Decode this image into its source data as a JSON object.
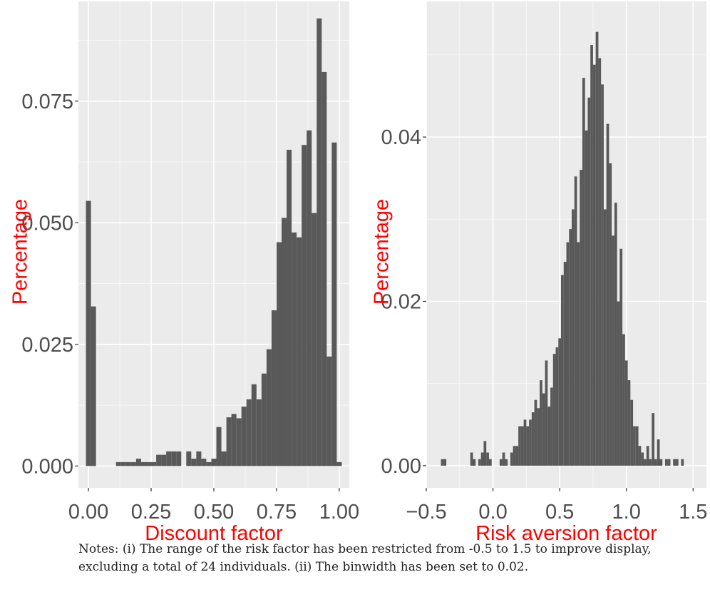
{
  "chart_data": [
    {
      "type": "bar",
      "title": "",
      "xlabel": "Discount factor",
      "ylabel": "Percentage",
      "binwidth": 0.02,
      "xlim": [
        -0.04,
        1.04
      ],
      "ylim": [
        -0.0045,
        0.0955
      ],
      "x_ticks": [
        0.0,
        0.25,
        0.5,
        0.75,
        1.0
      ],
      "x_tick_labels": [
        "0.00",
        "0.25",
        "0.50",
        "0.75",
        "1.00"
      ],
      "y_ticks": [
        0.0,
        0.025,
        0.05,
        0.075
      ],
      "y_tick_labels": [
        "0.000",
        "0.025",
        "0.050",
        "0.075"
      ],
      "grid": true,
      "bar_color": "#595959",
      "bins": [
        {
          "x": 0.0,
          "y": 0.0545
        },
        {
          "x": 0.02,
          "y": 0.0328
        },
        {
          "x": 0.12,
          "y": 0.0008
        },
        {
          "x": 0.14,
          "y": 0.0008
        },
        {
          "x": 0.16,
          "y": 0.0008
        },
        {
          "x": 0.18,
          "y": 0.0008
        },
        {
          "x": 0.2,
          "y": 0.0015
        },
        {
          "x": 0.22,
          "y": 0.0008
        },
        {
          "x": 0.24,
          "y": 0.0008
        },
        {
          "x": 0.26,
          "y": 0.0008
        },
        {
          "x": 0.28,
          "y": 0.0023
        },
        {
          "x": 0.3,
          "y": 0.0023
        },
        {
          "x": 0.32,
          "y": 0.003
        },
        {
          "x": 0.34,
          "y": 0.003
        },
        {
          "x": 0.36,
          "y": 0.003
        },
        {
          "x": 0.4,
          "y": 0.003
        },
        {
          "x": 0.42,
          "y": 0.0015
        },
        {
          "x": 0.44,
          "y": 0.003
        },
        {
          "x": 0.46,
          "y": 0.0015
        },
        {
          "x": 0.48,
          "y": 0.0008
        },
        {
          "x": 0.5,
          "y": 0.0015
        },
        {
          "x": 0.52,
          "y": 0.008
        },
        {
          "x": 0.54,
          "y": 0.003
        },
        {
          "x": 0.56,
          "y": 0.01
        },
        {
          "x": 0.58,
          "y": 0.0107
        },
        {
          "x": 0.6,
          "y": 0.0098
        },
        {
          "x": 0.62,
          "y": 0.0122
        },
        {
          "x": 0.64,
          "y": 0.0137
        },
        {
          "x": 0.66,
          "y": 0.0168
        },
        {
          "x": 0.68,
          "y": 0.0137
        },
        {
          "x": 0.7,
          "y": 0.019
        },
        {
          "x": 0.72,
          "y": 0.024
        },
        {
          "x": 0.74,
          "y": 0.032
        },
        {
          "x": 0.76,
          "y": 0.046
        },
        {
          "x": 0.78,
          "y": 0.051
        },
        {
          "x": 0.8,
          "y": 0.065
        },
        {
          "x": 0.82,
          "y": 0.048
        },
        {
          "x": 0.84,
          "y": 0.047
        },
        {
          "x": 0.86,
          "y": 0.066
        },
        {
          "x": 0.88,
          "y": 0.069
        },
        {
          "x": 0.9,
          "y": 0.052
        },
        {
          "x": 0.92,
          "y": 0.092
        },
        {
          "x": 0.94,
          "y": 0.081
        },
        {
          "x": 0.96,
          "y": 0.0225
        },
        {
          "x": 0.98,
          "y": 0.0665
        },
        {
          "x": 1.0,
          "y": 0.0008
        }
      ]
    },
    {
      "type": "bar",
      "title": "",
      "xlabel": "Risk aversion factor",
      "ylabel": "Percentage",
      "binwidth": 0.02,
      "xlim": [
        -0.5,
        1.6
      ],
      "ylim": [
        -0.0027,
        0.0565
      ],
      "x_ticks": [
        -0.5,
        0.0,
        0.5,
        1.0,
        1.5
      ],
      "x_tick_labels": [
        "−0.5",
        "0.0",
        "0.5",
        "1.0",
        "1.5"
      ],
      "y_ticks": [
        0.0,
        0.02,
        0.04
      ],
      "y_tick_labels": [
        "0.00",
        "0.02",
        "0.04"
      ],
      "grid": true,
      "bar_color": "#595959",
      "bins": [
        {
          "x": -0.38,
          "y": 0.0008
        },
        {
          "x": -0.36,
          "y": 0.0008
        },
        {
          "x": -0.16,
          "y": 0.0016
        },
        {
          "x": -0.14,
          "y": 0.0008
        },
        {
          "x": -0.1,
          "y": 0.0008
        },
        {
          "x": -0.08,
          "y": 0.0016
        },
        {
          "x": -0.06,
          "y": 0.003
        },
        {
          "x": -0.04,
          "y": 0.0016
        },
        {
          "x": -0.02,
          "y": 0.0008
        },
        {
          "x": 0.06,
          "y": 0.0008
        },
        {
          "x": 0.08,
          "y": 0.0016
        },
        {
          "x": 0.1,
          "y": 0.0008
        },
        {
          "x": 0.14,
          "y": 0.0016
        },
        {
          "x": 0.16,
          "y": 0.0024
        },
        {
          "x": 0.18,
          "y": 0.0024
        },
        {
          "x": 0.2,
          "y": 0.0048
        },
        {
          "x": 0.22,
          "y": 0.0048
        },
        {
          "x": 0.24,
          "y": 0.0056
        },
        {
          "x": 0.26,
          "y": 0.0048
        },
        {
          "x": 0.28,
          "y": 0.0056
        },
        {
          "x": 0.3,
          "y": 0.0065
        },
        {
          "x": 0.32,
          "y": 0.008
        },
        {
          "x": 0.34,
          "y": 0.007
        },
        {
          "x": 0.36,
          "y": 0.0104
        },
        {
          "x": 0.38,
          "y": 0.0088
        },
        {
          "x": 0.4,
          "y": 0.0128
        },
        {
          "x": 0.42,
          "y": 0.0072
        },
        {
          "x": 0.44,
          "y": 0.0095
        },
        {
          "x": 0.46,
          "y": 0.0136
        },
        {
          "x": 0.48,
          "y": 0.0144
        },
        {
          "x": 0.5,
          "y": 0.0155
        },
        {
          "x": 0.52,
          "y": 0.0232
        },
        {
          "x": 0.54,
          "y": 0.0248
        },
        {
          "x": 0.56,
          "y": 0.0272
        },
        {
          "x": 0.58,
          "y": 0.0288
        },
        {
          "x": 0.6,
          "y": 0.0312
        },
        {
          "x": 0.62,
          "y": 0.0352
        },
        {
          "x": 0.64,
          "y": 0.0272
        },
        {
          "x": 0.66,
          "y": 0.036
        },
        {
          "x": 0.68,
          "y": 0.0472
        },
        {
          "x": 0.7,
          "y": 0.0408
        },
        {
          "x": 0.72,
          "y": 0.0448
        },
        {
          "x": 0.74,
          "y": 0.0512
        },
        {
          "x": 0.76,
          "y": 0.0488
        },
        {
          "x": 0.78,
          "y": 0.0528
        },
        {
          "x": 0.8,
          "y": 0.0496
        },
        {
          "x": 0.82,
          "y": 0.0464
        },
        {
          "x": 0.84,
          "y": 0.0312
        },
        {
          "x": 0.86,
          "y": 0.0416
        },
        {
          "x": 0.88,
          "y": 0.0368
        },
        {
          "x": 0.9,
          "y": 0.028
        },
        {
          "x": 0.92,
          "y": 0.032
        },
        {
          "x": 0.94,
          "y": 0.02
        },
        {
          "x": 0.96,
          "y": 0.0264
        },
        {
          "x": 0.98,
          "y": 0.016
        },
        {
          "x": 1.0,
          "y": 0.0128
        },
        {
          "x": 1.02,
          "y": 0.0104
        },
        {
          "x": 1.04,
          "y": 0.008
        },
        {
          "x": 1.06,
          "y": 0.0048
        },
        {
          "x": 1.08,
          "y": 0.0048
        },
        {
          "x": 1.1,
          "y": 0.0024
        },
        {
          "x": 1.12,
          "y": 0.0016
        },
        {
          "x": 1.14,
          "y": 0.0008
        },
        {
          "x": 1.16,
          "y": 0.0024
        },
        {
          "x": 1.18,
          "y": 0.0008
        },
        {
          "x": 1.2,
          "y": 0.0064
        },
        {
          "x": 1.22,
          "y": 0.0008
        },
        {
          "x": 1.24,
          "y": 0.0032
        },
        {
          "x": 1.26,
          "y": 0.0008
        },
        {
          "x": 1.3,
          "y": 0.0008
        },
        {
          "x": 1.32,
          "y": 0.0008
        },
        {
          "x": 1.36,
          "y": 0.0008
        },
        {
          "x": 1.38,
          "y": 0.0008
        },
        {
          "x": 1.42,
          "y": 0.0008
        }
      ]
    }
  ],
  "notes": "Notes: (i) The range of the risk factor has been restricted from -0.5 to 1.5 to improve display, excluding a total of 24 individuals. (ii) The binwidth has been set to 0.02.",
  "colors": {
    "panel_background": "#ebebeb",
    "grid_major": "#ffffff",
    "axis_label": "#ff0000",
    "tick_label": "#4d4d4d"
  }
}
